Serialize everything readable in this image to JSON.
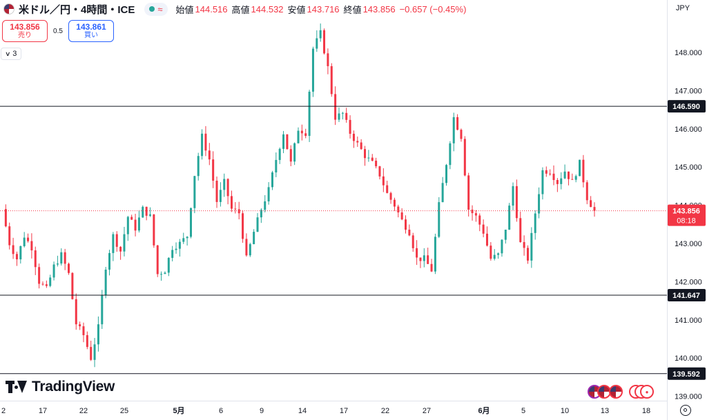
{
  "header": {
    "symbol": "米ドル／円・4時間・ICE",
    "open_label": "始値",
    "open": "144.516",
    "high_label": "高値",
    "high": "144.532",
    "low_label": "安値",
    "low": "143.716",
    "close_label": "終値",
    "close": "143.856",
    "change": "−0.657 (−0.45%)",
    "approx_icon": "≈"
  },
  "trade": {
    "sell_price": "143.856",
    "sell_label": "売り",
    "spread": "0.5",
    "buy_price": "143.861",
    "buy_label": "買い"
  },
  "indicators_collapse": {
    "count": "3"
  },
  "currency": "JPY",
  "logo_text": "TradingView",
  "colors": {
    "up": "#26a69a",
    "down": "#f23645",
    "line": "#131722",
    "price_label": "#f23645"
  },
  "chart_data": {
    "type": "candlestick",
    "yaxis": {
      "ticks": [
        "148.000",
        "147.000",
        "146.000",
        "145.000",
        "144.000",
        "143.000",
        "142.000",
        "141.000",
        "140.000",
        "139.000"
      ],
      "range": [
        138.9,
        148.8
      ]
    },
    "xaxis": {
      "labels": [
        {
          "text": "2",
          "bold": false
        },
        {
          "text": "17",
          "bold": false
        },
        {
          "text": "22",
          "bold": false
        },
        {
          "text": "25",
          "bold": false
        },
        {
          "text": "5月",
          "bold": true
        },
        {
          "text": "6",
          "bold": false
        },
        {
          "text": "9",
          "bold": false
        },
        {
          "text": "14",
          "bold": false
        },
        {
          "text": "17",
          "bold": false
        },
        {
          "text": "22",
          "bold": false
        },
        {
          "text": "27",
          "bold": false
        },
        {
          "text": "6月",
          "bold": true
        },
        {
          "text": "5",
          "bold": false
        },
        {
          "text": "10",
          "bold": false
        },
        {
          "text": "13",
          "bold": false
        },
        {
          "text": "18",
          "bold": false
        }
      ]
    },
    "horizontal_lines": [
      {
        "price": 146.59,
        "label": "146.590"
      },
      {
        "price": 141.647,
        "label": "141.647"
      },
      {
        "price": 139.592,
        "label": "139.592"
      }
    ],
    "current_price": {
      "price": 143.856,
      "label": "143.856",
      "countdown": "08:18"
    },
    "close_path": [
      143.9,
      143.0,
      142.6,
      143.2,
      142.9,
      142.0,
      141.8,
      142.4,
      142.7,
      142.2,
      140.9,
      140.6,
      140.0,
      140.8,
      142.4,
      143.2,
      142.8,
      143.7,
      143.4,
      143.9,
      143.7,
      142.2,
      142.3,
      142.9,
      143.0,
      143.2,
      144.8,
      145.8,
      145.2,
      144.1,
      144.6,
      143.9,
      143.8,
      142.6,
      143.3,
      143.9,
      144.4,
      145.2,
      145.9,
      145.1,
      146.0,
      145.9,
      148.1,
      148.5,
      147.6,
      146.3,
      146.4,
      145.9,
      145.6,
      145.3,
      145.1,
      144.8,
      144.3,
      144.0,
      143.6,
      143.3,
      142.6,
      142.6,
      142.3,
      144.0,
      145.1,
      146.3,
      145.8,
      143.9,
      143.7,
      143.3,
      142.6,
      142.7,
      143.4,
      144.5,
      143.0,
      142.6,
      143.8,
      144.9,
      144.9,
      144.6,
      144.9,
      144.6,
      145.1,
      144.2,
      143.856
    ]
  }
}
